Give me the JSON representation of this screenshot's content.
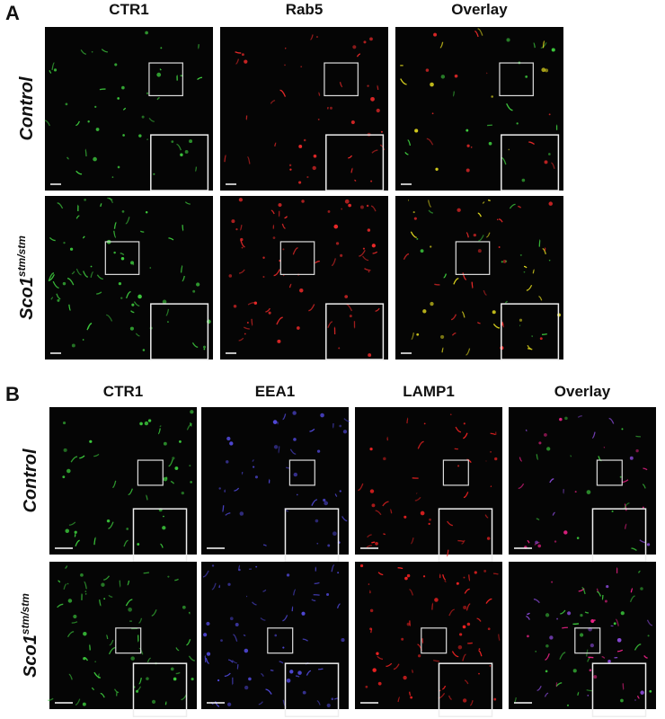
{
  "panel_a": {
    "label": "A",
    "columns": [
      "CTR1",
      "Rab5",
      "Overlay"
    ],
    "rows": [
      {
        "name": "Control"
      },
      {
        "name": "Sco1",
        "superscript": "stm/stm"
      }
    ]
  },
  "panel_b": {
    "label": "B",
    "columns": [
      "CTR1",
      "EEA1",
      "LAMP1",
      "Overlay"
    ],
    "rows": [
      {
        "name": "Control"
      },
      {
        "name": "Sco1",
        "superscript": "stm/stm"
      }
    ]
  }
}
